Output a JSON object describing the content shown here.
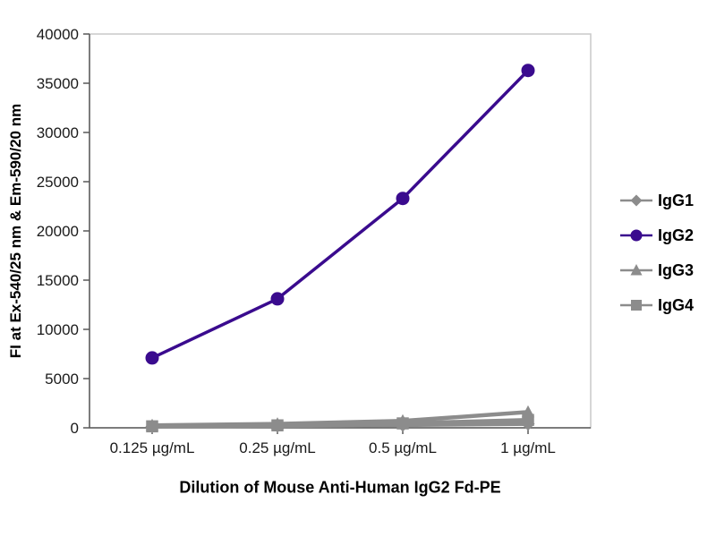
{
  "chart_data": {
    "type": "line",
    "title": "",
    "xlabel": "Dilution of Mouse Anti-Human IgG2 Fd-PE",
    "ylabel": "FI at Ex-540/25 nm & Em-590/20 nm",
    "categories": [
      "0.125 µg/mL",
      "0.25 µg/mL",
      "0.5 µg/mL",
      "1 µg/mL"
    ],
    "ylim": [
      0,
      40000
    ],
    "ytick_step": 5000,
    "yticks": [
      0,
      5000,
      10000,
      15000,
      20000,
      25000,
      30000,
      35000,
      40000
    ],
    "grid": false,
    "legend_position": "right",
    "colors": {
      "accent_purple": "#3A0B8E",
      "series_gray": "#8C8C8C",
      "axis": "#595959",
      "frame": "#C9C9C9",
      "text": "#1A1A1A"
    },
    "series": [
      {
        "name": "IgG1",
        "color": "#8C8C8C",
        "marker": "diamond",
        "line_width": 4.5,
        "values": [
          120,
          180,
          280,
          400
        ]
      },
      {
        "name": "IgG2",
        "color": "#3A0B8E",
        "marker": "circle",
        "line_width": 3.5,
        "values": [
          7100,
          13100,
          23300,
          36300
        ]
      },
      {
        "name": "IgG3",
        "color": "#8C8C8C",
        "marker": "triangle",
        "line_width": 4.5,
        "values": [
          250,
          400,
          700,
          1600
        ]
      },
      {
        "name": "IgG4",
        "color": "#8C8C8C",
        "marker": "square",
        "line_width": 4.5,
        "values": [
          150,
          250,
          450,
          800
        ]
      }
    ]
  }
}
